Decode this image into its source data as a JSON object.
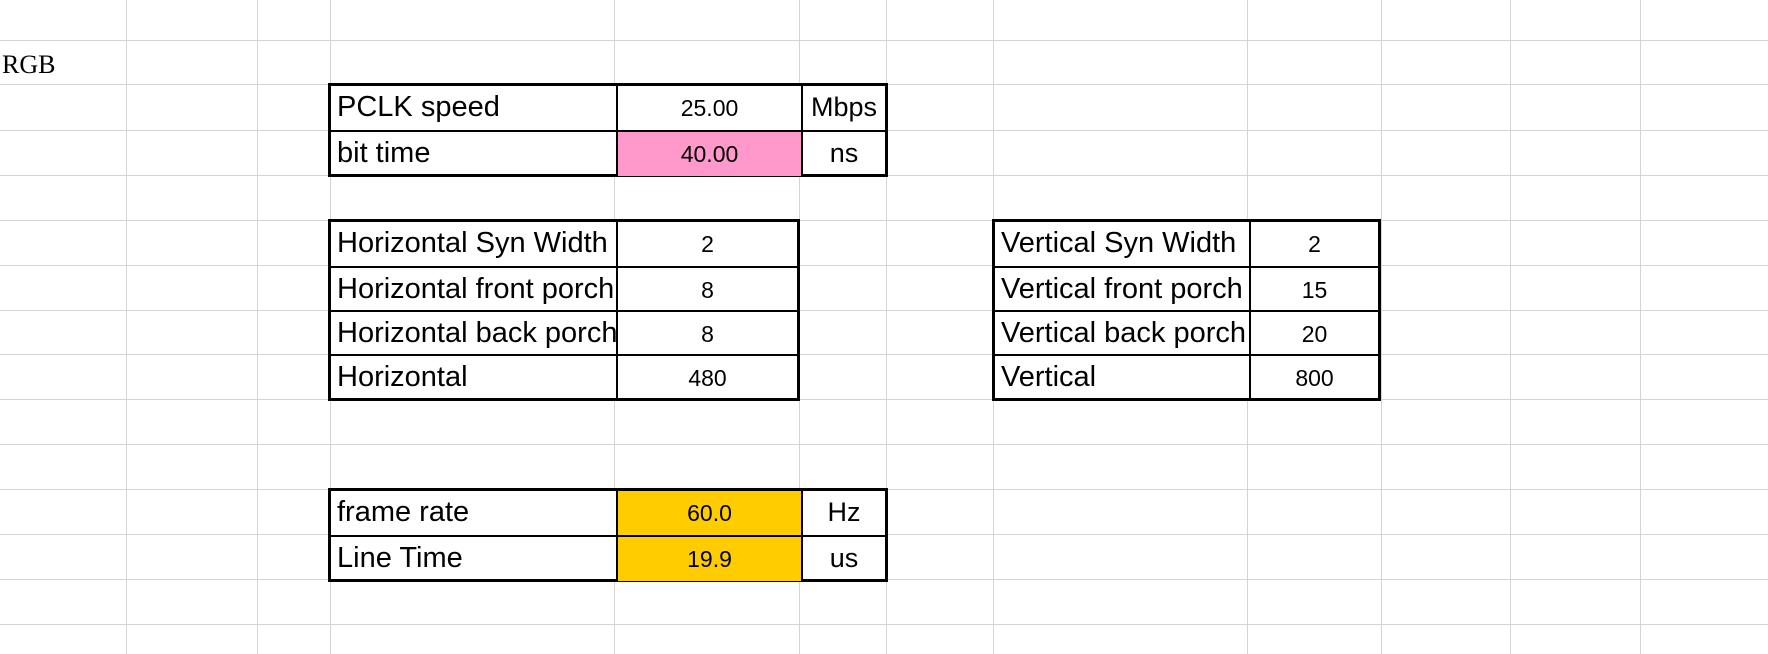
{
  "sheet": {
    "title": "RGB"
  },
  "pclk_table": {
    "rows": [
      {
        "label": "PCLK speed",
        "value": "25.00",
        "unit": "Mbps"
      },
      {
        "label": "bit time",
        "value": "40.00",
        "unit": "ns"
      }
    ]
  },
  "horizontal_table": {
    "rows": [
      {
        "label": "Horizontal Syn Width",
        "value": "2"
      },
      {
        "label": "Horizontal front porch",
        "value": "8"
      },
      {
        "label": "Horizontal back porch",
        "value": "8"
      },
      {
        "label": "Horizontal",
        "value": "480"
      }
    ]
  },
  "vertical_table": {
    "rows": [
      {
        "label": "Vertical Syn Width",
        "value": "2"
      },
      {
        "label": "Vertical front porch",
        "value": "15"
      },
      {
        "label": "Vertical back porch",
        "value": "20"
      },
      {
        "label": "Vertical",
        "value": "800"
      }
    ]
  },
  "timing_table": {
    "rows": [
      {
        "label": "frame rate",
        "value": "60.0",
        "unit": "Hz"
      },
      {
        "label": "Line Time",
        "value": "19.9",
        "unit": "us"
      }
    ]
  },
  "colors": {
    "highlight_pink": "#ff99cc",
    "highlight_gold": "#ffcc00",
    "gridline": "#d4d4d4"
  }
}
